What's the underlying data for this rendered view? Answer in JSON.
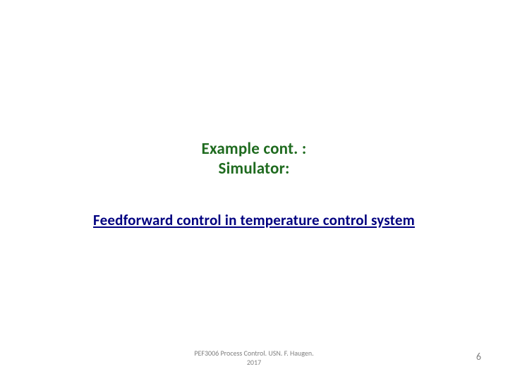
{
  "title": {
    "line1": "Example cont. :",
    "line2": "Simulator:",
    "color": "#1f6b1f"
  },
  "link": {
    "text": "Feedforward control in temperature control system",
    "color": "#000080"
  },
  "footer": {
    "line1": "PEF3006 Process Control. USN. F. Haugen.",
    "line2": "2017",
    "color": "#808080"
  },
  "page_number": {
    "value": "6",
    "color": "#808080"
  },
  "background_color": "#ffffff"
}
